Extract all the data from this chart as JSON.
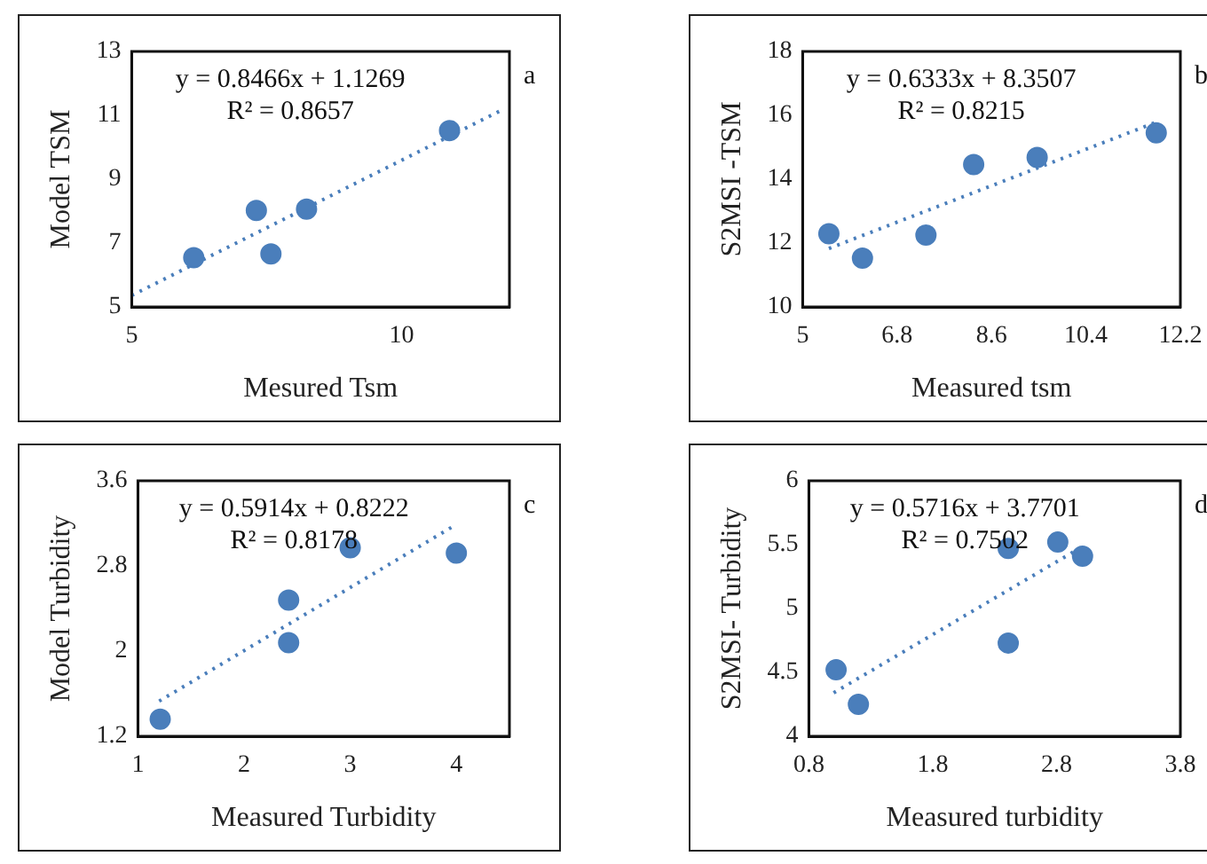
{
  "chart_data": [
    {
      "type": "scatter",
      "xlabel": "Mesured Tsm",
      "ylabel": "Model TSM",
      "marker": "circle",
      "xlim": [
        5,
        12
      ],
      "xticks": [
        5,
        10
      ],
      "ylim": [
        5,
        13
      ],
      "yticks": [
        5,
        7,
        9,
        11,
        13
      ],
      "grid": false,
      "annotations": [
        "y = 0.8466x + 1.1269",
        "R² = 0.8657",
        "a"
      ],
      "series": [
        {
          "type": "scatter",
          "color": "#4a7ebb",
          "x": [
            6.15,
            7.31,
            7.58,
            8.24,
            10.89
          ],
          "values": [
            6.54,
            8.02,
            6.66,
            8.06,
            10.52
          ]
        },
        {
          "type": "line",
          "color": "#4a7ebb",
          "line_style": "dotted",
          "marker": "none",
          "x": [
            5,
            11.9
          ],
          "values": [
            5.36,
            11.2
          ]
        }
      ]
    },
    {
      "type": "scatter",
      "xlabel": "Measured tsm",
      "ylabel": "S2MSI -TSM",
      "marker": "circle",
      "xlim": [
        5,
        12.2
      ],
      "xticks": [
        5,
        6.8,
        8.6,
        10.4,
        12.2
      ],
      "ylim": [
        10,
        18
      ],
      "yticks": [
        10,
        12,
        14,
        16,
        18
      ],
      "grid": false,
      "annotations": [
        "y = 0.6333x + 8.3507",
        "R² = 0.8215",
        "b"
      ],
      "series": [
        {
          "type": "scatter",
          "color": "#4a7ebb",
          "x": [
            5.5,
            6.14,
            7.35,
            8.26,
            9.47,
            11.74
          ],
          "values": [
            12.29,
            11.53,
            12.25,
            14.46,
            14.68,
            15.45
          ]
        },
        {
          "type": "line",
          "color": "#4a7ebb",
          "line_style": "dotted",
          "marker": "none",
          "x": [
            5.5,
            11.7
          ],
          "values": [
            11.83,
            15.76
          ]
        }
      ]
    },
    {
      "type": "scatter",
      "xlabel": "Measured Turbidity",
      "ylabel": "Model Turbidity",
      "marker": "circle",
      "xlim": [
        1,
        4.5
      ],
      "xticks": [
        1,
        2,
        3,
        4
      ],
      "ylim": [
        1.2,
        3.6
      ],
      "yticks": [
        1.2,
        2,
        2.8,
        3.6
      ],
      "grid": false,
      "annotations": [
        "y = 0.5914x + 0.8222",
        "R² = 0.8178",
        "c"
      ],
      "series": [
        {
          "type": "scatter",
          "color": "#4a7ebb",
          "x": [
            1.21,
            2.42,
            2.42,
            3.0,
            4.0
          ],
          "values": [
            1.36,
            2.08,
            2.48,
            2.97,
            2.92
          ]
        },
        {
          "type": "line",
          "color": "#4a7ebb",
          "line_style": "dotted",
          "marker": "none",
          "x": [
            1.2,
            4.0
          ],
          "values": [
            1.53,
            3.19
          ]
        }
      ]
    },
    {
      "type": "scatter",
      "xlabel": "Measured turbidity",
      "ylabel": "S2MSI- Turbidity",
      "marker": "circle",
      "xlim": [
        0.8,
        3.8
      ],
      "xticks": [
        0.8,
        1.8,
        2.8,
        3.8
      ],
      "ylim": [
        4,
        6
      ],
      "yticks": [
        4,
        4.5,
        5,
        5.5,
        6
      ],
      "grid": false,
      "annotations": [
        "y = 0.5716x + 3.7701",
        "R² = 0.7502",
        "d"
      ],
      "series": [
        {
          "type": "scatter",
          "color": "#4a7ebb",
          "x": [
            1.02,
            1.2,
            2.41,
            2.41,
            2.81,
            3.01
          ],
          "values": [
            4.52,
            4.25,
            5.47,
            4.73,
            5.52,
            5.41
          ]
        },
        {
          "type": "line",
          "color": "#4a7ebb",
          "line_style": "dotted",
          "marker": "none",
          "x": [
            1.0,
            3.0
          ],
          "values": [
            4.34,
            5.48
          ]
        }
      ]
    }
  ]
}
